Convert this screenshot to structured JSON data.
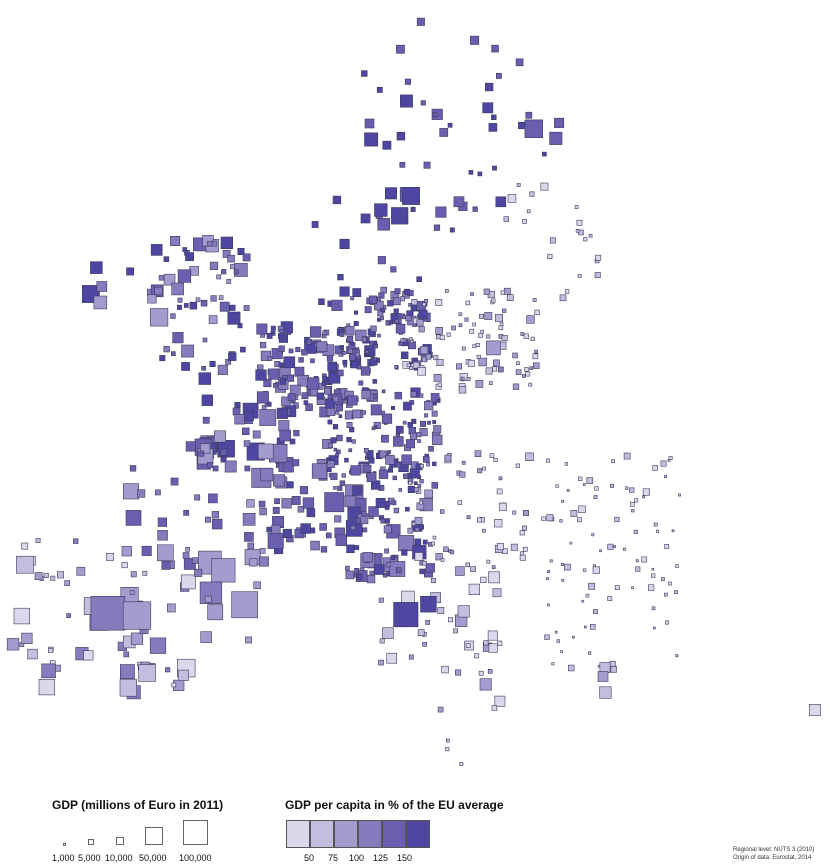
{
  "map": {
    "level_colors": [
      "#dcd8ec",
      "#c4bede",
      "#a39dcf",
      "#857bbd",
      "#6a5fae",
      "#4e46a0"
    ],
    "stroke_color": "#3c3a5c"
  },
  "legend": {
    "gdp_title": "GDP (millions of Euro in 2011)",
    "gdp_sizes": [
      "1,000",
      "5,000",
      "10,000",
      "50,000",
      "100,000"
    ],
    "pc_title": "GDP per capita in % of the EU average",
    "pc_breaks": [
      "50",
      "75",
      "100",
      "125",
      "150"
    ]
  },
  "source": {
    "line1": "Regional level: NUTS 3 (2010)",
    "line2": "Origin of data: Eurostat, 2014"
  }
}
